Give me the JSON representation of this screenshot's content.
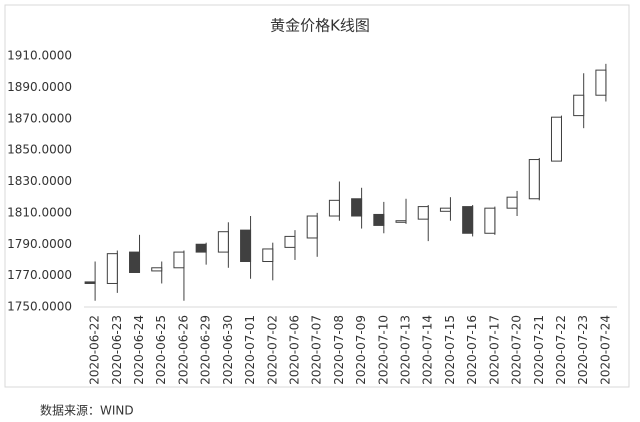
{
  "chart_data": {
    "type": "candlestick",
    "title": "黄金价格K线图",
    "categories": [
      "2020-06-22",
      "2020-06-23",
      "2020-06-24",
      "2020-06-25",
      "2020-06-26",
      "2020-06-29",
      "2020-06-30",
      "2020-07-01",
      "2020-07-02",
      "2020-07-06",
      "2020-07-07",
      "2020-07-08",
      "2020-07-09",
      "2020-07-10",
      "2020-07-13",
      "2020-07-14",
      "2020-07-15",
      "2020-07-16",
      "2020-07-17",
      "2020-07-20",
      "2020-07-21",
      "2020-07-22",
      "2020-07-23",
      "2020-07-24"
    ],
    "open": [
      1766,
      1765,
      1785,
      1773,
      1775,
      1790,
      1785,
      1799,
      1779,
      1788,
      1794,
      1808,
      1819,
      1809,
      1804,
      1806,
      1811,
      1814,
      1797,
      1813,
      1819,
      1843,
      1872,
      1885
    ],
    "high": [
      1779,
      1786,
      1796,
      1779,
      1786,
      1791,
      1804,
      1808,
      1791,
      1799,
      1810,
      1830,
      1826,
      1817,
      1819,
      1815,
      1820,
      1815,
      1814,
      1824,
      1845,
      1872,
      1899,
      1905
    ],
    "low": [
      1754,
      1759,
      1772,
      1765,
      1754,
      1777,
      1775,
      1768,
      1767,
      1780,
      1782,
      1805,
      1800,
      1797,
      1803,
      1792,
      1805,
      1795,
      1796,
      1808,
      1818,
      1843,
      1864,
      1881
    ],
    "close": [
      1765,
      1784,
      1772,
      1775,
      1785,
      1785,
      1798,
      1779,
      1787,
      1795,
      1808,
      1818,
      1808,
      1802,
      1805,
      1814,
      1813,
      1797,
      1813,
      1820,
      1844,
      1871,
      1885,
      1901
    ],
    "up_color": "#ffffff",
    "down_color": "#404040",
    "edge_color": "#404040",
    "ylim": [
      1750,
      1910
    ],
    "yticks": [
      {
        "value": 1750,
        "label": "1750.0000"
      },
      {
        "value": 1770,
        "label": "1770.0000"
      },
      {
        "value": 1790,
        "label": "1790.0000"
      },
      {
        "value": 1810,
        "label": "1810.0000"
      },
      {
        "value": 1830,
        "label": "1830.0000"
      },
      {
        "value": 1850,
        "label": "1850.0000"
      },
      {
        "value": 1870,
        "label": "1870.0000"
      },
      {
        "value": 1890,
        "label": "1890.0000"
      },
      {
        "value": 1910,
        "label": "1910.0000"
      }
    ],
    "grid": false,
    "source": "数据来源：WIND"
  }
}
